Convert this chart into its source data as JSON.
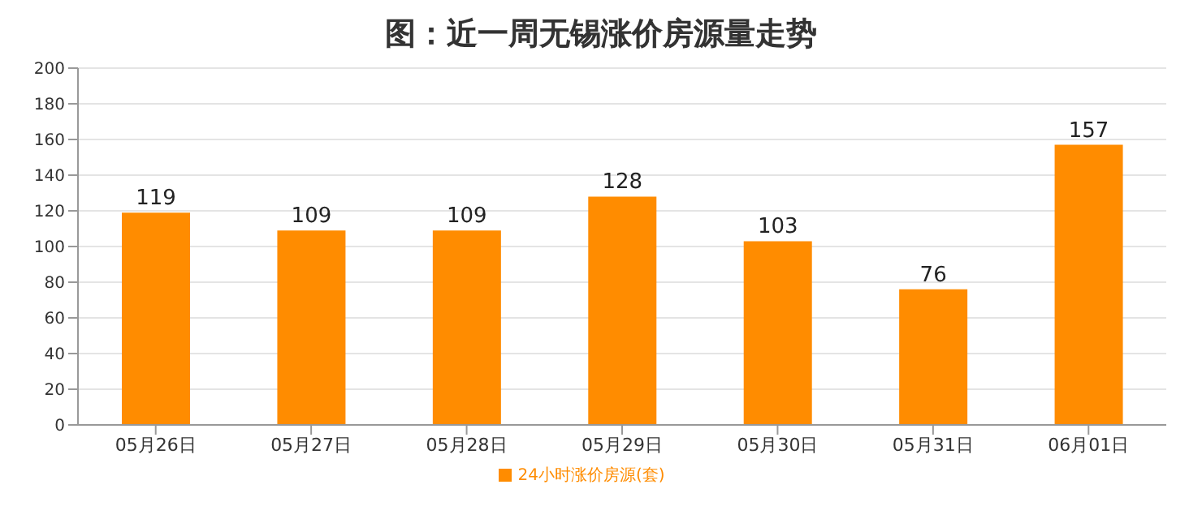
{
  "chart_data": {
    "type": "bar",
    "title": "图：近一周无锡涨价房源量走势",
    "categories": [
      "05月26日",
      "05月27日",
      "05月28日",
      "05月29日",
      "05月30日",
      "05月31日",
      "06月01日"
    ],
    "series": [
      {
        "name": "24小时涨价房源(套)",
        "color": "#ff8c00",
        "values": [
          119,
          109,
          109,
          128,
          103,
          76,
          157
        ]
      }
    ],
    "ylim": [
      0,
      200
    ],
    "yticks": [
      0,
      20,
      40,
      60,
      80,
      100,
      120,
      140,
      160,
      180,
      200
    ],
    "grid": "y",
    "legend": "bottom",
    "data_labels": true
  }
}
